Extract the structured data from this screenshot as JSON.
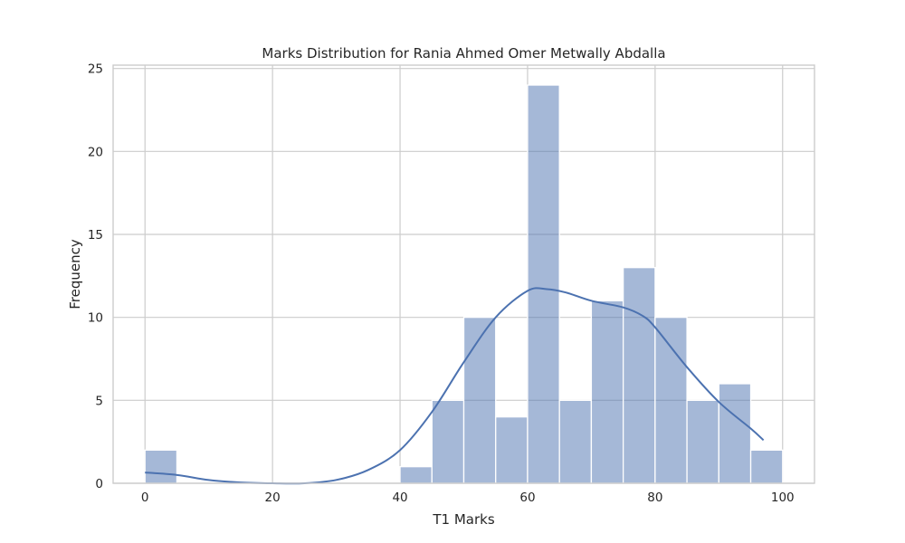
{
  "chart_data": {
    "type": "histogram",
    "title": "Marks Distribution for Rania Ahmed Omer Metwally Abdalla",
    "xlabel": "T1 Marks",
    "ylabel": "Frequency",
    "xlim": [
      -5,
      105
    ],
    "ylim": [
      0,
      25.2
    ],
    "xticks": [
      0,
      20,
      40,
      60,
      80,
      100
    ],
    "yticks": [
      0,
      5,
      10,
      15,
      20,
      25
    ],
    "grid": true,
    "bin_width": 5,
    "bins": [
      {
        "start": 0,
        "end": 5,
        "count": 2
      },
      {
        "start": 5,
        "end": 10,
        "count": 0
      },
      {
        "start": 10,
        "end": 15,
        "count": 0
      },
      {
        "start": 15,
        "end": 20,
        "count": 0
      },
      {
        "start": 20,
        "end": 25,
        "count": 0
      },
      {
        "start": 25,
        "end": 30,
        "count": 0
      },
      {
        "start": 30,
        "end": 35,
        "count": 0
      },
      {
        "start": 35,
        "end": 40,
        "count": 0
      },
      {
        "start": 40,
        "end": 45,
        "count": 1
      },
      {
        "start": 45,
        "end": 50,
        "count": 5
      },
      {
        "start": 50,
        "end": 55,
        "count": 10
      },
      {
        "start": 55,
        "end": 60,
        "count": 4
      },
      {
        "start": 60,
        "end": 65,
        "count": 24
      },
      {
        "start": 65,
        "end": 70,
        "count": 5
      },
      {
        "start": 70,
        "end": 75,
        "count": 11
      },
      {
        "start": 75,
        "end": 80,
        "count": 13
      },
      {
        "start": 80,
        "end": 85,
        "count": 10
      },
      {
        "start": 85,
        "end": 90,
        "count": 5
      },
      {
        "start": 90,
        "end": 95,
        "count": 6
      },
      {
        "start": 95,
        "end": 100,
        "count": 2
      }
    ],
    "kde_curve": [
      [
        0,
        0.65
      ],
      [
        5,
        0.5
      ],
      [
        10,
        0.2
      ],
      [
        15,
        0.05
      ],
      [
        20,
        0.0
      ],
      [
        25,
        0.0
      ],
      [
        30,
        0.2
      ],
      [
        35,
        0.8
      ],
      [
        40,
        2.0
      ],
      [
        45,
        4.3
      ],
      [
        50,
        7.3
      ],
      [
        55,
        10.0
      ],
      [
        60,
        11.6
      ],
      [
        63,
        11.7
      ],
      [
        66,
        11.5
      ],
      [
        70,
        11.0
      ],
      [
        75,
        10.6
      ],
      [
        78,
        10.1
      ],
      [
        80,
        9.4
      ],
      [
        85,
        7.0
      ],
      [
        90,
        4.9
      ],
      [
        95,
        3.3
      ],
      [
        97,
        2.6
      ]
    ],
    "colors": {
      "bar_fill": "#4c72b0",
      "kde_line": "#4c72b0",
      "grid": "#cccccc",
      "text": "#262626"
    }
  }
}
